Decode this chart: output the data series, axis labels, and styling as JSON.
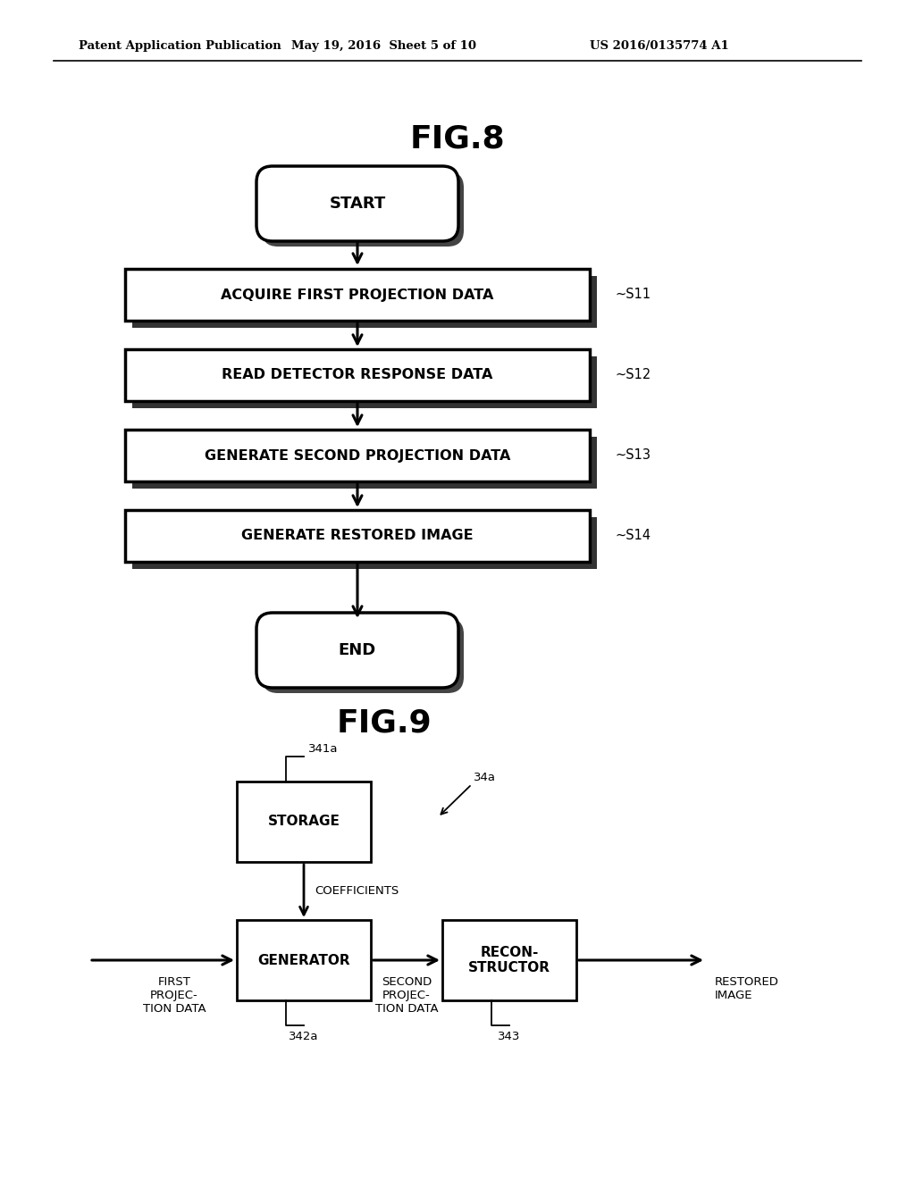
{
  "bg_color": "#ffffff",
  "header_left": "Patent Application Publication",
  "header_mid": "May 19, 2016  Sheet 5 of 10",
  "header_right": "US 2016/0135774 A1",
  "fig8_title": "FIG.8",
  "fig9_title": "FIG.9",
  "fig8_start_label": "START",
  "fig8_end_label": "END",
  "fig8_boxes": [
    {
      "label": "ACQUIRE FIRST PROJECTION DATA",
      "step": "S11"
    },
    {
      "label": "READ DETECTOR RESPONSE DATA",
      "step": "S12"
    },
    {
      "label": "GENERATE SECOND PROJECTION DATA",
      "step": "S13"
    },
    {
      "label": "GENERATE RESTORED IMAGE",
      "step": "S14"
    }
  ],
  "fig9_storage_label": "STORAGE",
  "fig9_storage_ref": "341a",
  "fig9_generator_label": "GENERATOR",
  "fig9_generator_ref": "342a",
  "fig9_reconstructor_label": "RECON-\nSTRUCTOR",
  "fig9_reconstructor_ref": "343",
  "fig9_module_ref": "34a",
  "fig9_coefficients_label": "COEFFICIENTS",
  "fig9_input_label": "FIRST\nPROJEC-\nTION DATA",
  "fig9_mid_label": "SECOND\nPROJEC-\nTION DATA",
  "fig9_output_label": "RESTORED\nIMAGE"
}
